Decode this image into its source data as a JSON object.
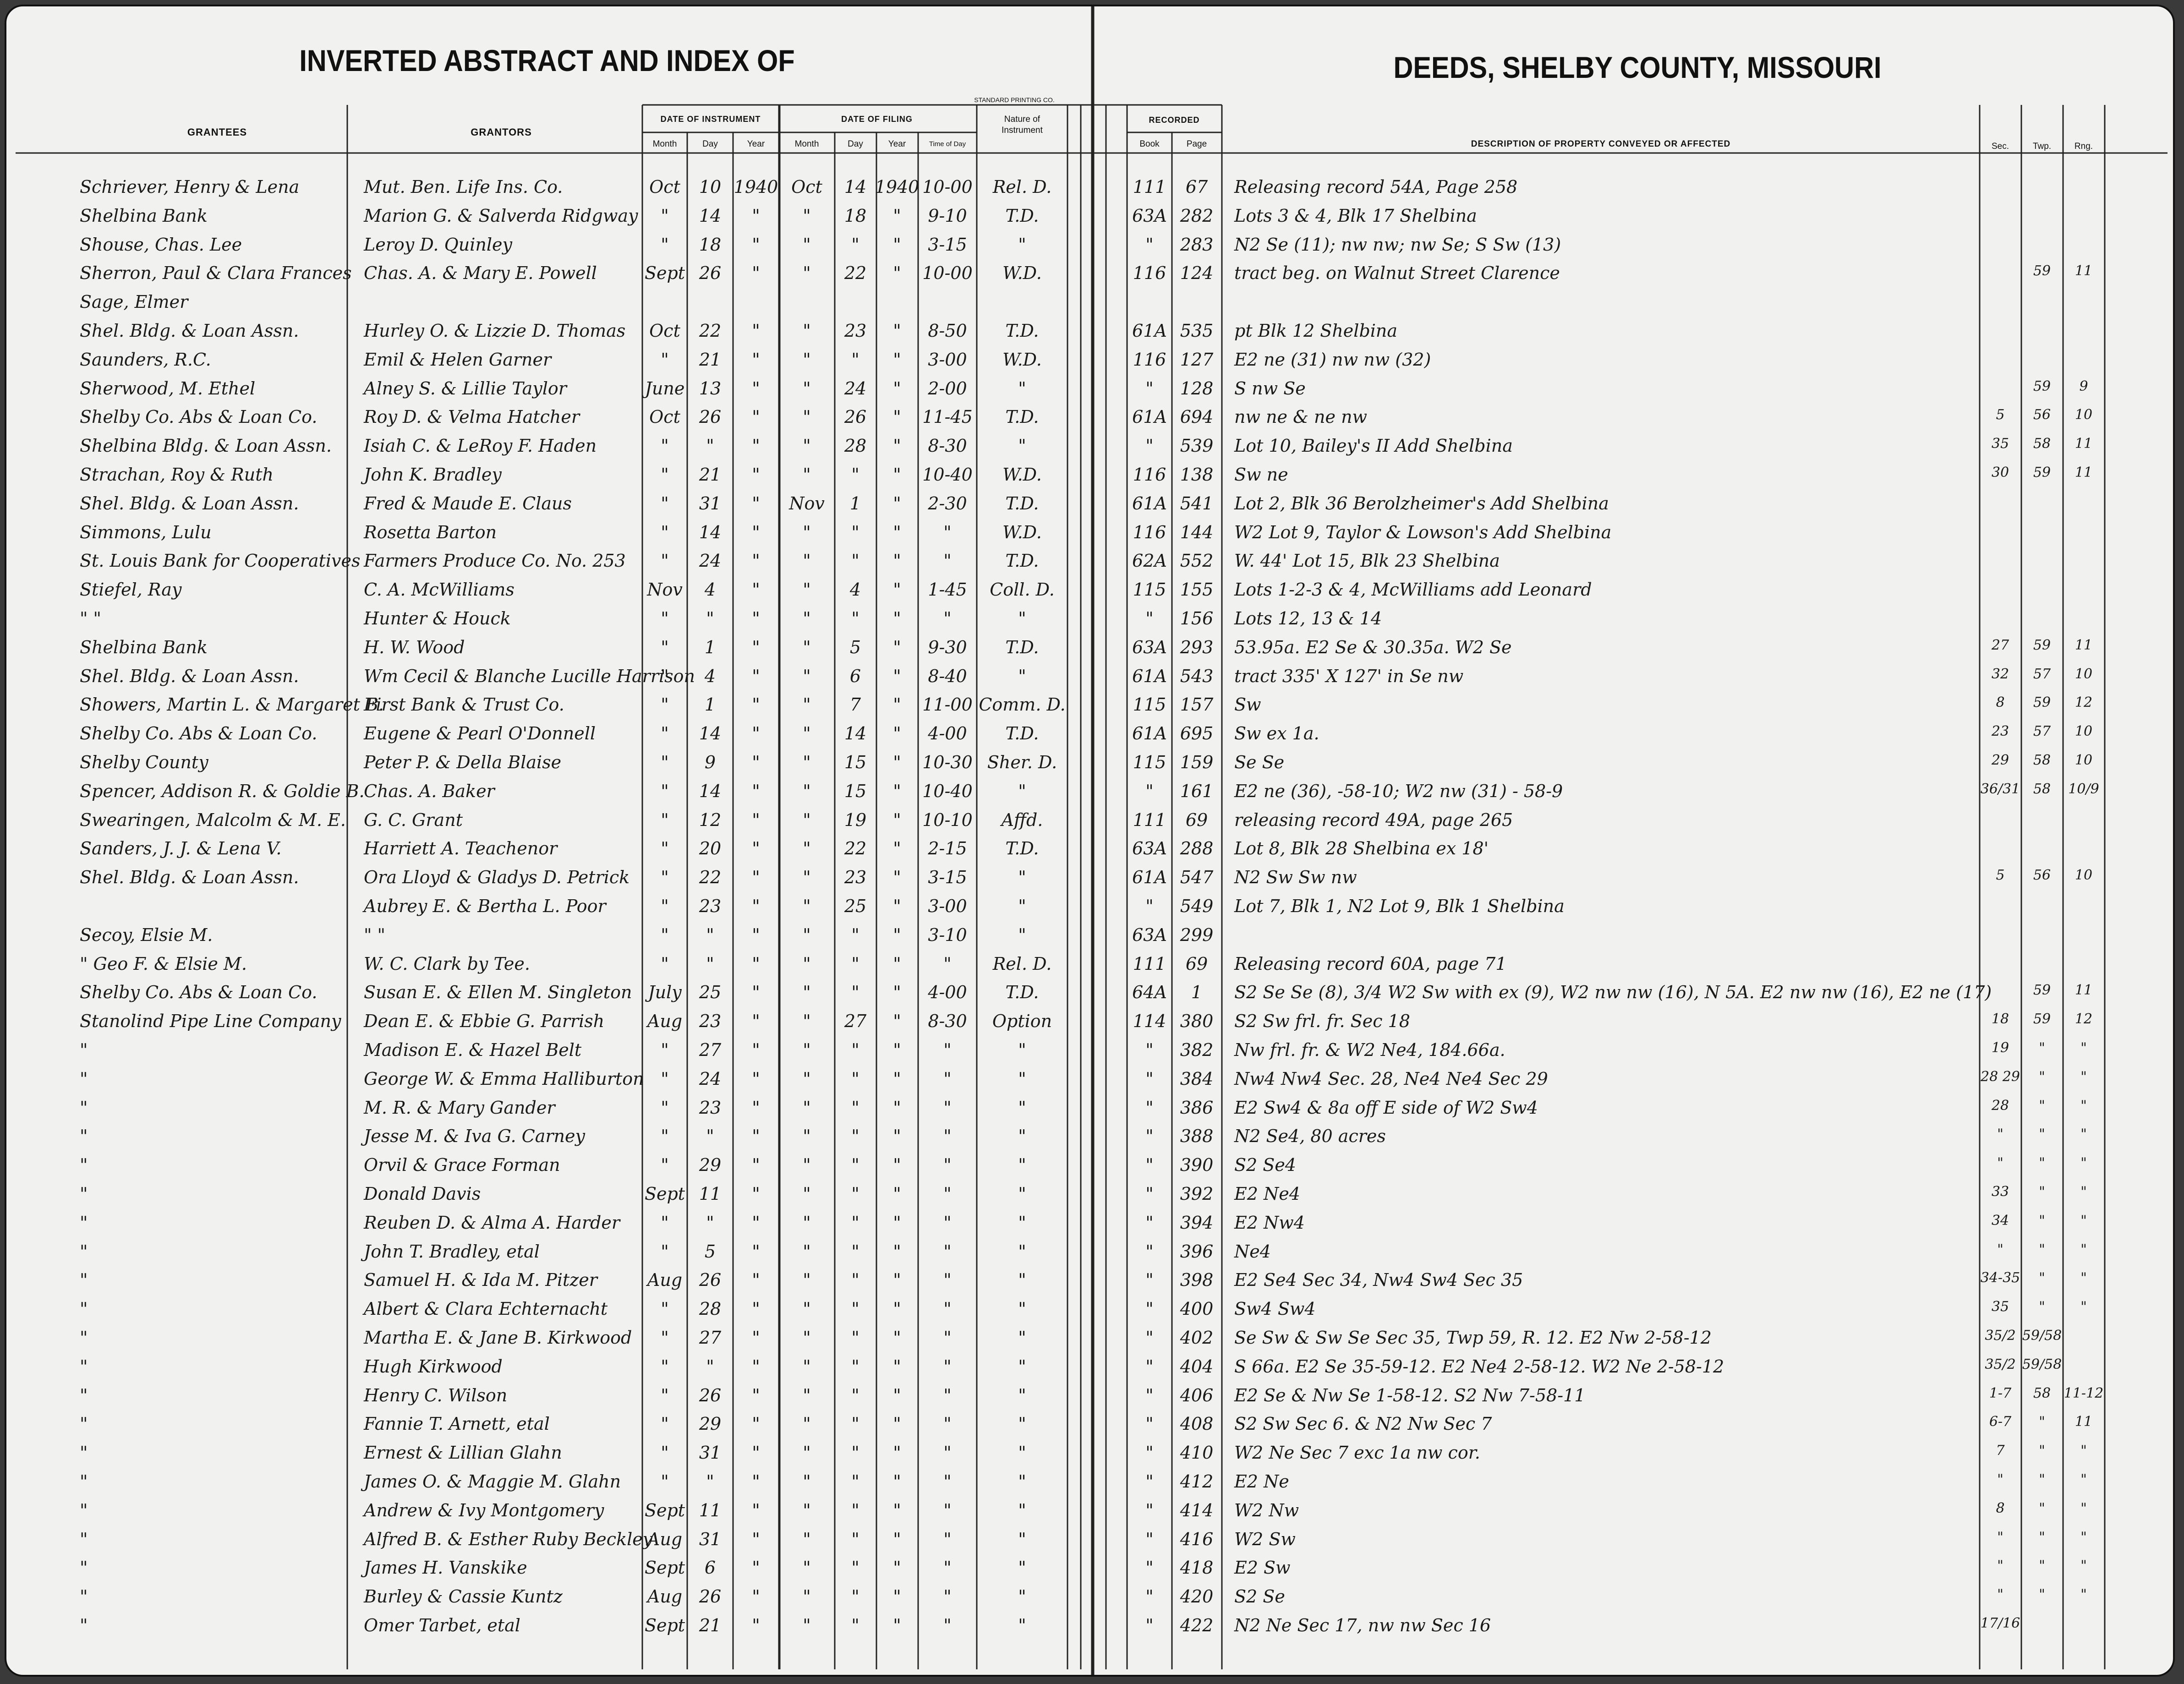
{
  "header": {
    "left_title": "INVERTED ABSTRACT AND INDEX OF",
    "right_title": "DEEDS, SHELBY COUNTY, MISSOURI",
    "printer": "STANDARD PRINTING CO."
  },
  "columns": {
    "grantees": "GRANTEES",
    "grantors": "GRANTORS",
    "date_of_instrument": "DATE OF INSTRUMENT",
    "inst_month": "Month",
    "inst_day": "Day",
    "inst_year": "Year",
    "date_of_filing": "DATE OF FILING",
    "file_month": "Month",
    "file_day": "Day",
    "file_year": "Year",
    "time_of_day": "Time of Day",
    "nature": "Nature of Instrument",
    "recorded": "RECORDED",
    "book": "Book",
    "page": "Page",
    "description": "DESCRIPTION OF PROPERTY CONVEYED OR AFFECTED",
    "sec": "Sec.",
    "twp": "Twp.",
    "rng": "Rng."
  },
  "rows": [
    [
      "Schriever, Henry & Lena",
      "Mut. Ben. Life Ins. Co.",
      "Oct",
      "10",
      "1940",
      "Oct",
      "14",
      "1940",
      "10-00",
      "Rel. D.",
      "111",
      "67",
      "Releasing record 54A, Page 258",
      null,
      null,
      null
    ],
    [
      "Shelbina Bank",
      "Marion G. & Salverda Ridgway",
      "\"",
      "14",
      "\"",
      "\"",
      "18",
      "\"",
      "9-10",
      "T.D.",
      "63A",
      "282",
      "Lots 3 & 4, Blk 17 Shelbina",
      null,
      null,
      null
    ],
    [
      "Shouse, Chas. Lee",
      "Leroy D. Quinley",
      "\"",
      "18",
      "\"",
      "\"",
      "\"",
      "\"",
      "3-15",
      "\"",
      "\"",
      "283",
      "N2 Se (11); nw nw; nw Se; S Sw (13)",
      null,
      null,
      null
    ],
    [
      "Sherron, Paul & Clara Frances",
      "Chas. A. & Mary E. Powell",
      "Sept",
      "26",
      "\"",
      "\"",
      "22",
      "\"",
      "10-00",
      "W.D.",
      "116",
      "124",
      "tract beg. on Walnut Street Clarence",
      null,
      "59",
      "11"
    ],
    [
      "Sage, Elmer",
      null,
      null,
      null,
      null,
      null,
      null,
      null,
      null,
      null,
      null,
      null,
      null,
      null,
      null,
      null
    ],
    [
      "Shel. Bldg. & Loan Assn.",
      "Hurley O. & Lizzie D. Thomas",
      "Oct",
      "22",
      "\"",
      "\"",
      "23",
      "\"",
      "8-50",
      "T.D.",
      "61A",
      "535",
      "pt Blk 12 Shelbina",
      null,
      null,
      null
    ],
    [
      "Saunders, R.C.",
      "Emil & Helen Garner",
      "\"",
      "21",
      "\"",
      "\"",
      "\"",
      "\"",
      "3-00",
      "W.D.",
      "116",
      "127",
      "E2 ne (31) nw nw (32)",
      null,
      null,
      null
    ],
    [
      "Sherwood, M. Ethel",
      "Alney S. & Lillie Taylor",
      "June",
      "13",
      "\"",
      "\"",
      "24",
      "\"",
      "2-00",
      "\"",
      "\"",
      "128",
      "S nw Se",
      null,
      "59",
      "9"
    ],
    [
      "Shelby Co. Abs & Loan Co.",
      "Roy D. & Velma Hatcher",
      "Oct",
      "26",
      "\"",
      "\"",
      "26",
      "\"",
      "11-45",
      "T.D.",
      "61A",
      "694",
      "nw ne & ne nw",
      "5",
      "56",
      "10"
    ],
    [
      "Shelbina Bldg. & Loan Assn.",
      "Isiah C. & LeRoy F. Haden",
      "\"",
      "\"",
      "\"",
      "\"",
      "28",
      "\"",
      "8-30",
      "\"",
      "\"",
      "539",
      "Lot 10, Bailey's II Add Shelbina",
      "35",
      "58",
      "11"
    ],
    [
      "Strachan, Roy & Ruth",
      "John K. Bradley",
      "\"",
      "21",
      "\"",
      "\"",
      "\"",
      "\"",
      "10-40",
      "W.D.",
      "116",
      "138",
      "Sw ne",
      "30",
      "59",
      "11"
    ],
    [
      "Shel. Bldg. & Loan Assn.",
      "Fred & Maude E. Claus",
      "\"",
      "31",
      "\"",
      "Nov",
      "1",
      "\"",
      "2-30",
      "T.D.",
      "61A",
      "541",
      "Lot 2, Blk 36 Berolzheimer's Add Shelbina",
      null,
      null,
      null
    ],
    [
      "Simmons, Lulu",
      "Rosetta Barton",
      "\"",
      "14",
      "\"",
      "\"",
      "\"",
      "\"",
      "\"",
      "W.D.",
      "116",
      "144",
      "W2 Lot 9, Taylor & Lowson's Add Shelbina",
      null,
      null,
      null
    ],
    [
      "St. Louis Bank for Cooperatives",
      "Farmers Produce Co. No. 253",
      "\"",
      "24",
      "\"",
      "\"",
      "\"",
      "\"",
      "\"",
      "T.D.",
      "62A",
      "552",
      "W. 44' Lot 15, Blk 23 Shelbina",
      null,
      null,
      null
    ],
    [
      "Stiefel, Ray",
      "C. A. McWilliams",
      "Nov",
      "4",
      "\"",
      "\"",
      "4",
      "\"",
      "1-45",
      "Coll. D.",
      "115",
      "155",
      "Lots 1-2-3 & 4, McWilliams add Leonard",
      null,
      null,
      null
    ],
    [
      "\" \"",
      "Hunter & Houck",
      "\"",
      "\"",
      "\"",
      "\"",
      "\"",
      "\"",
      "\"",
      "\"",
      "\"",
      "156",
      "Lots 12, 13 & 14",
      null,
      null,
      null
    ],
    [
      "Shelbina Bank",
      "H. W. Wood",
      "\"",
      "1",
      "\"",
      "\"",
      "5",
      "\"",
      "9-30",
      "T.D.",
      "63A",
      "293",
      "53.95a. E2 Se & 30.35a. W2 Se",
      "27",
      "59",
      "11"
    ],
    [
      "Shel. Bldg. & Loan Assn.",
      "Wm Cecil & Blanche Lucille Harrison",
      "\"",
      "4",
      "\"",
      "\"",
      "6",
      "\"",
      "8-40",
      "\"",
      "61A",
      "543",
      "tract 335' X 127' in Se nw",
      "32",
      "57",
      "10"
    ],
    [
      "Showers, Martin L. & Margaret B.",
      "First Bank & Trust Co.",
      "\"",
      "1",
      "\"",
      "\"",
      "7",
      "\"",
      "11-00",
      "Comm. D.",
      "115",
      "157",
      "Sw",
      "8",
      "59",
      "12"
    ],
    [
      "Shelby Co. Abs & Loan Co.",
      "Eugene & Pearl O'Donnell",
      "\"",
      "14",
      "\"",
      "\"",
      "14",
      "\"",
      "4-00",
      "T.D.",
      "61A",
      "695",
      "Sw ex 1a.",
      "23",
      "57",
      "10"
    ],
    [
      "Shelby County",
      "Peter P. & Della Blaise",
      "\"",
      "9",
      "\"",
      "\"",
      "15",
      "\"",
      "10-30",
      "Sher. D.",
      "115",
      "159",
      "Se Se",
      "29",
      "58",
      "10"
    ],
    [
      "Spencer, Addison R. & Goldie B.",
      "Chas. A. Baker",
      "\"",
      "14",
      "\"",
      "\"",
      "15",
      "\"",
      "10-40",
      "\"",
      "\"",
      "161",
      "E2 ne (36), -58-10; W2 nw (31) - 58-9",
      "36/31",
      "58",
      "10/9"
    ],
    [
      "Swearingen, Malcolm & M. E.",
      "G. C. Grant",
      "\"",
      "12",
      "\"",
      "\"",
      "19",
      "\"",
      "10-10",
      "Affd.",
      "111",
      "69",
      "releasing record 49A, page 265",
      null,
      null,
      null
    ],
    [
      "Sanders, J. J. & Lena V.",
      "Harriett A. Teachenor",
      "\"",
      "20",
      "\"",
      "\"",
      "22",
      "\"",
      "2-15",
      "T.D.",
      "63A",
      "288",
      "Lot 8, Blk 28 Shelbina ex 18'",
      null,
      null,
      null
    ],
    [
      "Shel. Bldg. & Loan Assn.",
      "Ora Lloyd & Gladys D. Petrick",
      "\"",
      "22",
      "\"",
      "\"",
      "23",
      "\"",
      "3-15",
      "\"",
      "61A",
      "547",
      "N2 Sw Sw nw",
      "5",
      "56",
      "10"
    ],
    [
      null,
      "Aubrey E. & Bertha L. Poor",
      "\"",
      "23",
      "\"",
      "\"",
      "25",
      "\"",
      "3-00",
      "\"",
      "\"",
      "549",
      "Lot 7, Blk 1, N2 Lot 9, Blk 1 Shelbina",
      null,
      null,
      null
    ],
    [
      "Secoy, Elsie M.",
      "\" \"",
      "\"",
      "\"",
      "\"",
      "\"",
      "\"",
      "\"",
      "3-10",
      "\"",
      "63A",
      "299",
      null,
      null,
      null,
      null
    ],
    [
      "\" Geo F. & Elsie M.",
      "W. C. Clark by Tee.",
      "\"",
      "\"",
      "\"",
      "\"",
      "\"",
      "\"",
      "\"",
      "Rel. D.",
      "111",
      "69",
      "Releasing record 60A, page 71",
      null,
      null,
      null
    ],
    [
      "Shelby Co. Abs & Loan Co.",
      "Susan E. & Ellen M. Singleton",
      "July",
      "25",
      "\"",
      "\"",
      "\"",
      "\"",
      "4-00",
      "T.D.",
      "64A",
      "1",
      "S2 Se Se (8), 3/4 W2 Sw with ex (9), W2 nw nw (16), N 5A. E2 nw nw (16), E2 ne (17)",
      null,
      "59",
      "11"
    ],
    [
      "Stanolind Pipe Line Company",
      "Dean E. & Ebbie G. Parrish",
      "Aug",
      "23",
      "\"",
      "\"",
      "27",
      "\"",
      "8-30",
      "Option",
      "114",
      "380",
      "S2 Sw frl. fr. Sec 18",
      "18",
      "59",
      "12"
    ],
    [
      "\"",
      "Madison E. & Hazel Belt",
      "\"",
      "27",
      "\"",
      "\"",
      "\"",
      "\"",
      "\"",
      "\"",
      "\"",
      "382",
      "Nw frl. fr. & W2 Ne4, 184.66a.",
      "19",
      "\"",
      "\""
    ],
    [
      "\"",
      "George W. & Emma Halliburton",
      "\"",
      "24",
      "\"",
      "\"",
      "\"",
      "\"",
      "\"",
      "\"",
      "\"",
      "384",
      "Nw4 Nw4 Sec. 28, Ne4 Ne4 Sec 29",
      "28 29",
      "\"",
      "\""
    ],
    [
      "\"",
      "M. R. & Mary Gander",
      "\"",
      "23",
      "\"",
      "\"",
      "\"",
      "\"",
      "\"",
      "\"",
      "\"",
      "386",
      "E2 Sw4 & 8a off E side of W2 Sw4",
      "28",
      "\"",
      "\""
    ],
    [
      "\"",
      "Jesse M. & Iva G. Carney",
      "\"",
      "\"",
      "\"",
      "\"",
      "\"",
      "\"",
      "\"",
      "\"",
      "\"",
      "388",
      "N2 Se4, 80 acres",
      "\"",
      "\"",
      "\""
    ],
    [
      "\"",
      "Orvil & Grace Forman",
      "\"",
      "29",
      "\"",
      "\"",
      "\"",
      "\"",
      "\"",
      "\"",
      "\"",
      "390",
      "S2 Se4",
      "\"",
      "\"",
      "\""
    ],
    [
      "\"",
      "Donald Davis",
      "Sept",
      "11",
      "\"",
      "\"",
      "\"",
      "\"",
      "\"",
      "\"",
      "\"",
      "392",
      "E2 Ne4",
      "33",
      "\"",
      "\""
    ],
    [
      "\"",
      "Reuben D. & Alma A. Harder",
      "\"",
      "\"",
      "\"",
      "\"",
      "\"",
      "\"",
      "\"",
      "\"",
      "\"",
      "394",
      "E2 Nw4",
      "34",
      "\"",
      "\""
    ],
    [
      "\"",
      "John T. Bradley, etal",
      "\"",
      "5",
      "\"",
      "\"",
      "\"",
      "\"",
      "\"",
      "\"",
      "\"",
      "396",
      "Ne4",
      "\"",
      "\"",
      "\""
    ],
    [
      "\"",
      "Samuel H. & Ida M. Pitzer",
      "Aug",
      "26",
      "\"",
      "\"",
      "\"",
      "\"",
      "\"",
      "\"",
      "\"",
      "398",
      "E2 Se4 Sec 34, Nw4 Sw4 Sec 35",
      "34-35",
      "\"",
      "\""
    ],
    [
      "\"",
      "Albert & Clara Echternacht",
      "\"",
      "28",
      "\"",
      "\"",
      "\"",
      "\"",
      "\"",
      "\"",
      "\"",
      "400",
      "Sw4 Sw4",
      "35",
      "\"",
      "\""
    ],
    [
      "\"",
      "Martha E. & Jane B. Kirkwood",
      "\"",
      "27",
      "\"",
      "\"",
      "\"",
      "\"",
      "\"",
      "\"",
      "\"",
      "402",
      "Se Sw & Sw Se Sec 35, Twp 59, R. 12. E2 Nw 2-58-12",
      "35/2",
      "59/58",
      null
    ],
    [
      "\"",
      "Hugh Kirkwood",
      "\"",
      "\"",
      "\"",
      "\"",
      "\"",
      "\"",
      "\"",
      "\"",
      "\"",
      "404",
      "S 66a. E2 Se 35-59-12. E2 Ne4 2-58-12. W2 Ne 2-58-12",
      "35/2",
      "59/58",
      null
    ],
    [
      "\"",
      "Henry C. Wilson",
      "\"",
      "26",
      "\"",
      "\"",
      "\"",
      "\"",
      "\"",
      "\"",
      "\"",
      "406",
      "E2 Se & Nw Se 1-58-12. S2 Nw 7-58-11",
      "1-7",
      "58",
      "11-12"
    ],
    [
      "\"",
      "Fannie T. Arnett, etal",
      "\"",
      "29",
      "\"",
      "\"",
      "\"",
      "\"",
      "\"",
      "\"",
      "\"",
      "408",
      "S2 Sw Sec 6. & N2 Nw Sec 7",
      "6-7",
      "\"",
      "11"
    ],
    [
      "\"",
      "Ernest & Lillian Glahn",
      "\"",
      "31",
      "\"",
      "\"",
      "\"",
      "\"",
      "\"",
      "\"",
      "\"",
      "410",
      "W2 Ne Sec 7 exc 1a nw cor.",
      "7",
      "\"",
      "\""
    ],
    [
      "\"",
      "James O. & Maggie M. Glahn",
      "\"",
      "\"",
      "\"",
      "\"",
      "\"",
      "\"",
      "\"",
      "\"",
      "\"",
      "412",
      "E2 Ne",
      "\"",
      "\"",
      "\""
    ],
    [
      "\"",
      "Andrew & Ivy Montgomery",
      "Sept",
      "11",
      "\"",
      "\"",
      "\"",
      "\"",
      "\"",
      "\"",
      "\"",
      "414",
      "W2 Nw",
      "8",
      "\"",
      "\""
    ],
    [
      "\"",
      "Alfred B. & Esther Ruby Beckley",
      "Aug",
      "31",
      "\"",
      "\"",
      "\"",
      "\"",
      "\"",
      "\"",
      "\"",
      "416",
      "W2 Sw",
      "\"",
      "\"",
      "\""
    ],
    [
      "\"",
      "James H. Vanskike",
      "Sept",
      "6",
      "\"",
      "\"",
      "\"",
      "\"",
      "\"",
      "\"",
      "\"",
      "418",
      "E2 Sw",
      "\"",
      "\"",
      "\""
    ],
    [
      "\"",
      "Burley & Cassie Kuntz",
      "Aug",
      "26",
      "\"",
      "\"",
      "\"",
      "\"",
      "\"",
      "\"",
      "\"",
      "420",
      "S2 Se",
      "\"",
      "\"",
      "\""
    ],
    [
      "\"",
      "Omer Tarbet, etal",
      "Sept",
      "21",
      "\"",
      "\"",
      "\"",
      "\"",
      "\"",
      "\"",
      "\"",
      "422",
      "N2 Ne Sec 17, nw nw Sec 16",
      "17/16",
      null,
      null
    ]
  ]
}
